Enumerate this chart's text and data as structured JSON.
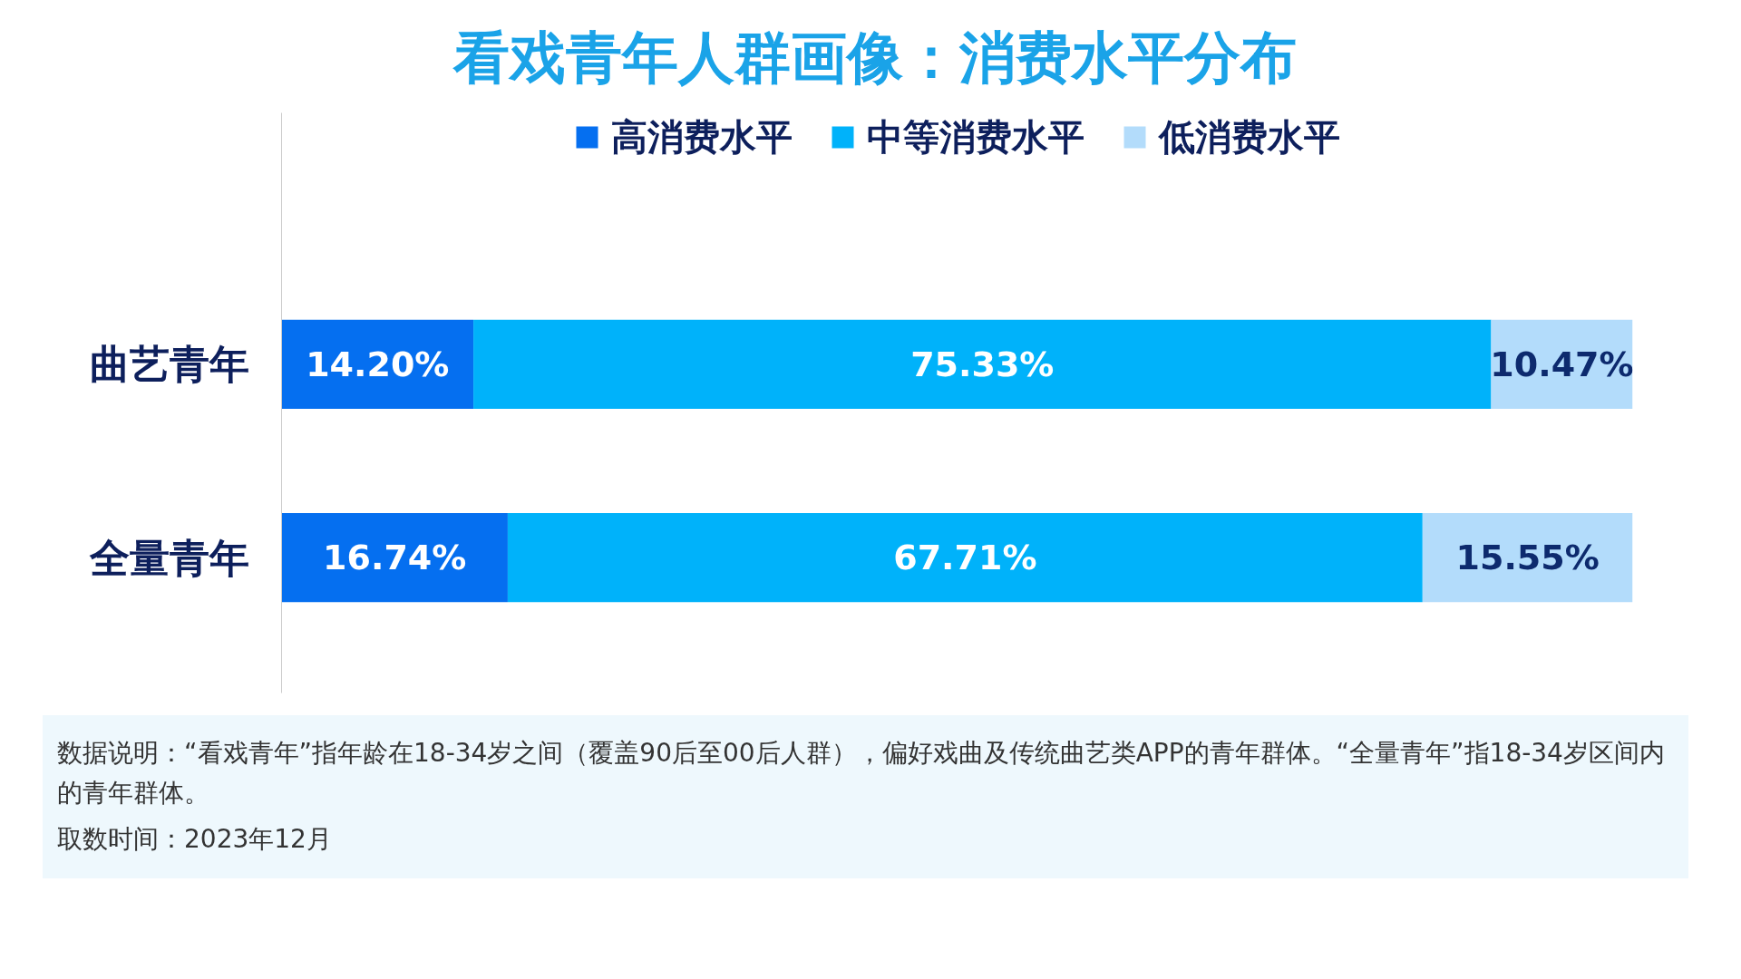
{
  "chart_data": {
    "type": "bar",
    "orientation": "horizontal",
    "stacked": true,
    "title": "看戏青年人群画像：消费水平分布",
    "categories": [
      "曲艺青年",
      "全量青年"
    ],
    "series": [
      {
        "name": "高消费水平",
        "color": "#056ff0",
        "values": [
          14.2,
          16.74
        ],
        "value_labels": [
          "14.20%",
          "16.74%"
        ]
      },
      {
        "name": "中等消费水平",
        "color": "#00b2fa",
        "values": [
          75.33,
          67.71
        ],
        "value_labels": [
          "75.33%",
          "67.71%"
        ]
      },
      {
        "name": "低消费水平",
        "color": "#b3dcfb",
        "values": [
          10.47,
          15.55
        ],
        "value_labels": [
          "10.47%",
          "15.55%"
        ]
      }
    ],
    "legend": "top",
    "grid": false,
    "annotations": [
      "数据说明：“看戏青年”指年龄在18-34岁之间（覆盖90后至00后人群），偏好戏曲及传统曲艺类APP的青年群体。“全量青年”指18-34岁区间内的青年群体。",
      "取数时间：2023年12月"
    ]
  }
}
